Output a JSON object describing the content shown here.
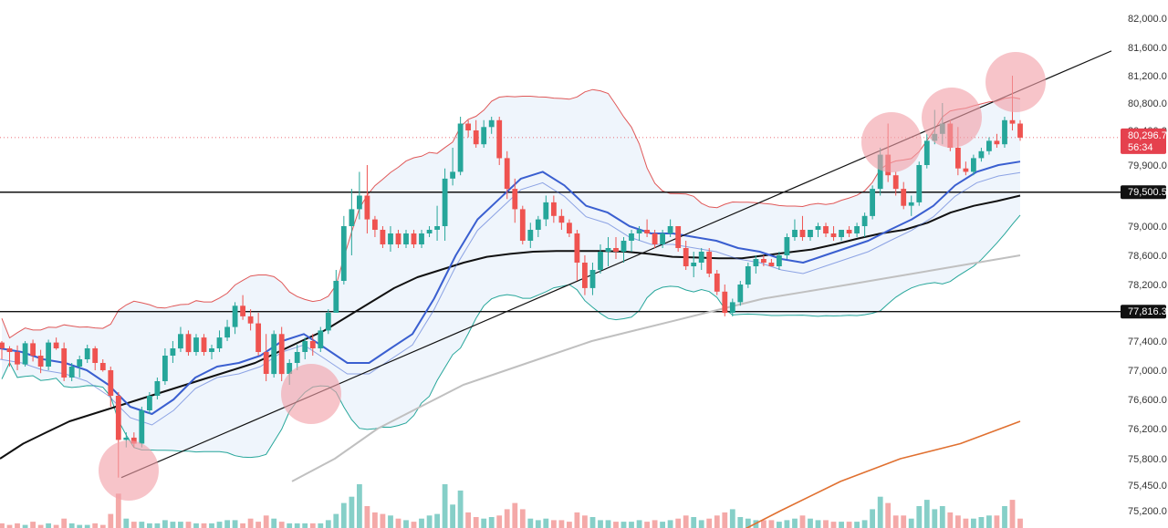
{
  "chart_data": {
    "type": "candlestick",
    "y_axis": {
      "side": "right",
      "ticks": [
        "82,000.0",
        "81,600.0",
        "81,200.0",
        "80,800.0",
        "80,400.0",
        "79,900.0",
        "79,000.0",
        "78,600.0",
        "78,200.0",
        "77,400.0",
        "77,000.0",
        "76,600.0",
        "76,200.0",
        "75,800.0",
        "75,450.0",
        "75,200.0"
      ],
      "tick_values": [
        82000,
        81600,
        81200,
        80800,
        80400,
        79900,
        79000,
        78600,
        78200,
        77400,
        77000,
        76600,
        76200,
        75800,
        75450,
        75200
      ],
      "range": [
        75100,
        82100
      ]
    },
    "candles_ohlc": [
      [
        77380,
        77400,
        77150,
        77300
      ],
      [
        77300,
        77330,
        77050,
        77250
      ],
      [
        77250,
        77340,
        77000,
        77080
      ],
      [
        77080,
        77400,
        77050,
        77370
      ],
      [
        77370,
        77420,
        77120,
        77200
      ],
      [
        77200,
        77280,
        76960,
        77050
      ],
      [
        77050,
        77420,
        77000,
        77380
      ],
      [
        77380,
        77450,
        77280,
        77300
      ],
      [
        77300,
        77380,
        76850,
        76900
      ],
      [
        76900,
        77100,
        76850,
        77050
      ],
      [
        77050,
        77200,
        76900,
        77150
      ],
      [
        77150,
        77350,
        77100,
        77300
      ],
      [
        77300,
        77330,
        77000,
        77100
      ],
      [
        77100,
        77150,
        76980,
        77000
      ],
      [
        77000,
        77050,
        76500,
        76650
      ],
      [
        76650,
        76700,
        75550,
        76050
      ],
      [
        76050,
        76150,
        75950,
        76080
      ],
      [
        76080,
        76150,
        75950,
        76000
      ],
      [
        76000,
        76500,
        75950,
        76450
      ],
      [
        76450,
        76700,
        76400,
        76650
      ],
      [
        76650,
        76900,
        76600,
        76850
      ],
      [
        76850,
        77300,
        76800,
        77200
      ],
      [
        77200,
        77400,
        77100,
        77300
      ],
      [
        77300,
        77600,
        77250,
        77500
      ],
      [
        77500,
        77550,
        77200,
        77250
      ],
      [
        77250,
        77500,
        77200,
        77450
      ],
      [
        77450,
        77500,
        77200,
        77250
      ],
      [
        77250,
        77350,
        77150,
        77300
      ],
      [
        77300,
        77550,
        77250,
        77450
      ],
      [
        77450,
        77700,
        77400,
        77600
      ],
      [
        77600,
        77950,
        77500,
        77900
      ],
      [
        77900,
        78050,
        77700,
        77750
      ],
      [
        77750,
        77850,
        77550,
        77650
      ],
      [
        77650,
        77800,
        77200,
        77250
      ],
      [
        77250,
        77500,
        76850,
        76950
      ],
      [
        76950,
        77550,
        76900,
        77500
      ],
      [
        77500,
        77600,
        76850,
        76950
      ],
      [
        76950,
        77150,
        76800,
        77100
      ],
      [
        77100,
        77350,
        77000,
        77250
      ],
      [
        77250,
        77450,
        77150,
        77400
      ],
      [
        77400,
        77500,
        77200,
        77300
      ],
      [
        77300,
        77600,
        77250,
        77550
      ],
      [
        77550,
        77850,
        77500,
        77800
      ],
      [
        77800,
        78400,
        77800,
        78250
      ],
      [
        78250,
        79150,
        78200,
        79000
      ],
      [
        79000,
        79550,
        78600,
        79250
      ],
      [
        79250,
        79800,
        79100,
        79450
      ],
      [
        79450,
        79900,
        78900,
        79100
      ],
      [
        79100,
        79150,
        78850,
        78950
      ],
      [
        78950,
        79000,
        78700,
        78750
      ],
      [
        78750,
        79000,
        78650,
        78900
      ],
      [
        78900,
        78950,
        78700,
        78750
      ],
      [
        78750,
        78950,
        78700,
        78900
      ],
      [
        78900,
        78950,
        78700,
        78750
      ],
      [
        78750,
        78950,
        78700,
        78900
      ],
      [
        78900,
        79000,
        78850,
        78950
      ],
      [
        78950,
        79300,
        78800,
        79000
      ],
      [
        79000,
        79850,
        78800,
        79700
      ],
      [
        79700,
        80150,
        79600,
        79800
      ],
      [
        79800,
        80600,
        79750,
        80500
      ],
      [
        80500,
        80550,
        80300,
        80400
      ],
      [
        80400,
        80550,
        80150,
        80200
      ],
      [
        80200,
        80550,
        80150,
        80450
      ],
      [
        80450,
        80600,
        80350,
        80550
      ],
      [
        80550,
        80600,
        79900,
        80000
      ],
      [
        80000,
        80100,
        79400,
        79550
      ],
      [
        79550,
        79700,
        79050,
        79250
      ],
      [
        79250,
        79300,
        78750,
        78800
      ],
      [
        78800,
        79050,
        78700,
        78950
      ],
      [
        78950,
        79150,
        78850,
        79100
      ],
      [
        79100,
        79450,
        79000,
        79350
      ],
      [
        79350,
        79450,
        79050,
        79150
      ],
      [
        79150,
        79250,
        78950,
        79050
      ],
      [
        79050,
        79100,
        78850,
        78900
      ],
      [
        78900,
        78950,
        78250,
        78500
      ],
      [
        78500,
        78600,
        78050,
        78150
      ],
      [
        78150,
        78500,
        78050,
        78400
      ],
      [
        78400,
        78750,
        78350,
        78650
      ],
      [
        78650,
        78850,
        78450,
        78700
      ],
      [
        78700,
        78850,
        78550,
        78650
      ],
      [
        78650,
        78850,
        78500,
        78800
      ],
      [
        78800,
        78950,
        78650,
        78900
      ],
      [
        78900,
        79000,
        78800,
        78950
      ],
      [
        78950,
        79100,
        78850,
        78900
      ],
      [
        78900,
        78950,
        78700,
        78750
      ],
      [
        78750,
        78950,
        78700,
        78900
      ],
      [
        78900,
        79100,
        78850,
        79000
      ],
      [
        79000,
        79000,
        78650,
        78700
      ],
      [
        78700,
        78800,
        78400,
        78450
      ],
      [
        78450,
        78650,
        78300,
        78500
      ],
      [
        78500,
        78700,
        78400,
        78650
      ],
      [
        78650,
        78700,
        78300,
        78350
      ],
      [
        78350,
        78400,
        78050,
        78100
      ],
      [
        78100,
        78200,
        77750,
        77800
      ],
      [
        77800,
        78000,
        77750,
        77950
      ],
      [
        77950,
        78250,
        77900,
        78200
      ],
      [
        78200,
        78500,
        78150,
        78450
      ],
      [
        78450,
        78600,
        78350,
        78550
      ],
      [
        78550,
        78600,
        78450,
        78500
      ],
      [
        78500,
        78550,
        78450,
        78450
      ],
      [
        78450,
        78650,
        78400,
        78600
      ],
      [
        78600,
        78900,
        78550,
        78850
      ],
      [
        78850,
        79100,
        78800,
        78950
      ],
      [
        78950,
        79150,
        78800,
        78850
      ],
      [
        78850,
        78950,
        78800,
        78950
      ],
      [
        78950,
        79050,
        78850,
        79000
      ],
      [
        79000,
        79050,
        78850,
        78900
      ],
      [
        78900,
        79000,
        78800,
        78850
      ],
      [
        78850,
        78950,
        78800,
        78950
      ],
      [
        78950,
        79000,
        78850,
        78900
      ],
      [
        78900,
        79050,
        78850,
        79000
      ],
      [
        79000,
        79200,
        78850,
        79150
      ],
      [
        79150,
        79600,
        79100,
        79550
      ],
      [
        79550,
        80150,
        79450,
        80050
      ],
      [
        80050,
        80500,
        79650,
        79750
      ],
      [
        79750,
        79800,
        79450,
        79550
      ],
      [
        79550,
        79650,
        79250,
        79300
      ],
      [
        79300,
        79450,
        79150,
        79350
      ],
      [
        79350,
        79950,
        79300,
        79900
      ],
      [
        79900,
        80350,
        79850,
        80250
      ],
      [
        80250,
        80700,
        80200,
        80350
      ],
      [
        80350,
        80800,
        80200,
        80500
      ],
      [
        80500,
        80550,
        80100,
        80150
      ],
      [
        80150,
        80450,
        79750,
        79850
      ],
      [
        79850,
        79950,
        79750,
        79800
      ],
      [
        79800,
        80050,
        79750,
        80000
      ],
      [
        80000,
        80150,
        79950,
        80100
      ],
      [
        80100,
        80300,
        80050,
        80250
      ],
      [
        80250,
        80350,
        80150,
        80200
      ],
      [
        80200,
        80600,
        80150,
        80550
      ],
      [
        80550,
        81200,
        80400,
        80500
      ],
      [
        80500,
        80550,
        80250,
        80296
      ]
    ],
    "volume": [
      3,
      2,
      3,
      2,
      4,
      2,
      3,
      2,
      6,
      3,
      2,
      2,
      3,
      2,
      9,
      22,
      6,
      4,
      4,
      3,
      3,
      5,
      4,
      4,
      4,
      3,
      3,
      3,
      4,
      5,
      5,
      3,
      6,
      4,
      8,
      6,
      4,
      3,
      3,
      3,
      3,
      3,
      5,
      9,
      16,
      20,
      28,
      14,
      10,
      9,
      8,
      6,
      5,
      4,
      6,
      8,
      9,
      28,
      15,
      24,
      10,
      7,
      6,
      7,
      8,
      12,
      16,
      12,
      6,
      5,
      6,
      5,
      5,
      4,
      10,
      8,
      7,
      5,
      5,
      4,
      4,
      4,
      5,
      4,
      5,
      4,
      5,
      6,
      8,
      7,
      5,
      6,
      8,
      10,
      12,
      7,
      6,
      5,
      5,
      5,
      4,
      5,
      6,
      8,
      6,
      5,
      5,
      4,
      4,
      4,
      4,
      5,
      12,
      20,
      16,
      8,
      8,
      6,
      14,
      18,
      12,
      14,
      10,
      8,
      6,
      6,
      7,
      8,
      8,
      14,
      18,
      6
    ],
    "lines": [
      {
        "values": [
          75800,
          76000,
          76150,
          76300,
          76400,
          76500,
          76600,
          76700,
          76800,
          76900,
          77000,
          77100,
          77250,
          77400,
          77550,
          77750,
          77950,
          78150,
          78300,
          78400,
          78500,
          78580,
          78620,
          78650,
          78660,
          78660,
          78660,
          78650,
          78620,
          78580,
          78570,
          78560,
          78560,
          78600,
          78640,
          78680,
          78750,
          78830,
          78900,
          78950,
          79050,
          79200,
          79300,
          79370,
          79450
        ],
        "color": "#111111"
      },
      {
        "values": [
          77300,
          77250,
          77150,
          77100,
          77000,
          76800,
          76500,
          76400,
          76600,
          76900,
          77050,
          77100,
          77200,
          77400,
          77500,
          77300,
          77100,
          77100,
          77300,
          77500,
          78000,
          78600,
          79100,
          79400,
          79700,
          79800,
          79600,
          79300,
          79200,
          79000,
          78900,
          78900,
          78850,
          78800,
          78700,
          78650,
          78550,
          78500,
          78600,
          78700,
          78800,
          78950,
          79100,
          79300,
          79600,
          79800,
          79900,
          79950
        ],
        "color": "#3a5fd0"
      },
      {
        "values": [
          75500,
          75800,
          76200,
          76500,
          76800,
          77000,
          77200,
          77400,
          77550,
          77700,
          77850,
          78000,
          78100,
          78200,
          78300,
          78400,
          78500,
          78600
        ],
        "color": "#c0c0c0"
      },
      {
        "values": [
          74900,
          75200,
          75500,
          75800,
          76000,
          76300
        ],
        "color": "#e07030"
      }
    ],
    "horizontal_levels": [
      79500.5,
      77816.3
    ],
    "price_labels": [
      {
        "value": 80296.7,
        "text": "80,296.7",
        "sub": "56:34",
        "color": "#e5414e"
      },
      {
        "value": 79500.5,
        "text": "79,500.5",
        "color": "#111111"
      },
      {
        "value": 77816.3,
        "text": "77,816.3",
        "color": "#111111"
      }
    ],
    "colors": {
      "up": "#26a69a",
      "down": "#ef5350",
      "band_fill": "#e9f2fb",
      "upper_band": "#e05858",
      "lower_band": "#26a69a",
      "marker": "#f2a0a8"
    }
  }
}
